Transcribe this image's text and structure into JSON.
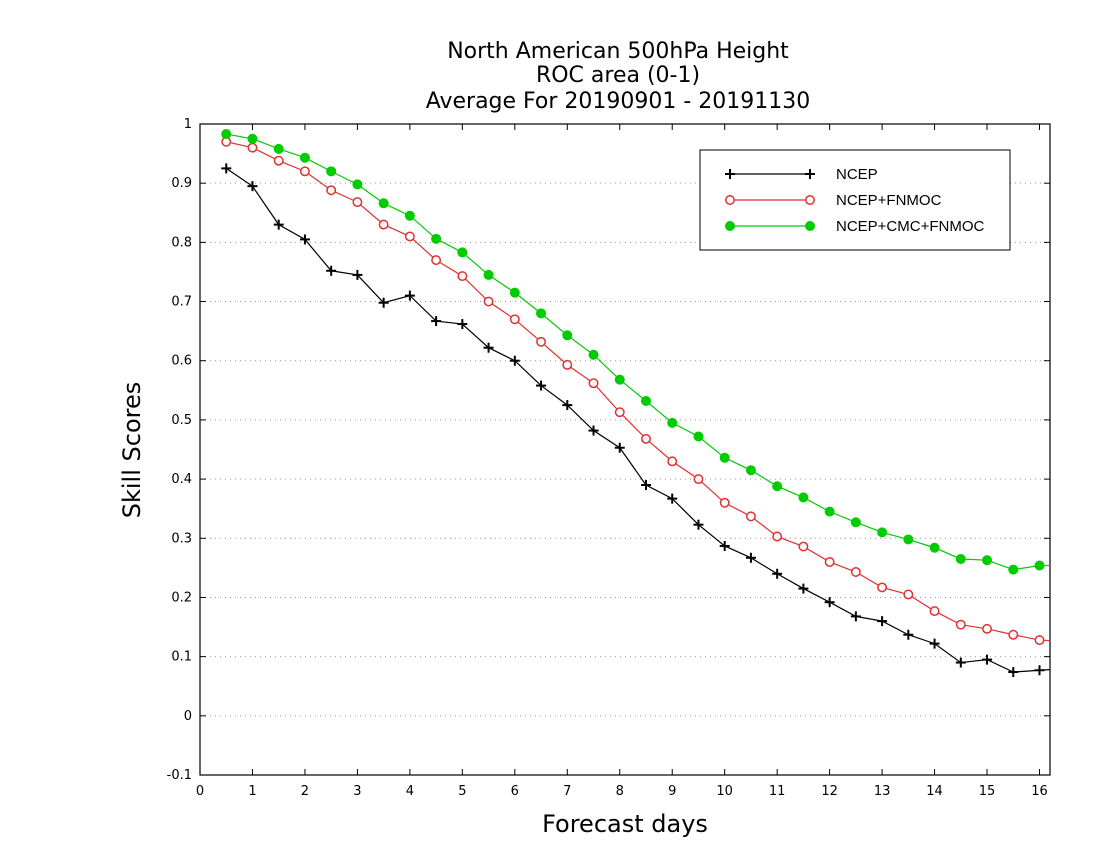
{
  "chart_data": {
    "type": "line",
    "title": [
      "North American 500hPa Height",
      "ROC area (0-1)",
      "Average For 20190901 - 20191130"
    ],
    "xlabel": "Forecast days",
    "ylabel": "Skill Scores",
    "xlim": [
      0,
      16.2
    ],
    "ylim": [
      -0.1,
      1
    ],
    "xticks": [
      0,
      1,
      2,
      3,
      4,
      5,
      6,
      7,
      8,
      9,
      10,
      11,
      12,
      13,
      14,
      15,
      16
    ],
    "xtick_labels": [
      "0",
      "1",
      "2",
      "3",
      "4",
      "5",
      "6",
      "7",
      "8",
      "9",
      "10",
      "11",
      "12",
      "13",
      "14",
      "15",
      "16"
    ],
    "yticks": [
      -0.1,
      0,
      0.1,
      0.2,
      0.3,
      0.4,
      0.5,
      0.6,
      0.7,
      0.8,
      0.9,
      1
    ],
    "ytick_labels": [
      "-0.1",
      "0",
      "0.1",
      "0.2",
      "0.3",
      "0.4",
      "0.5",
      "0.6",
      "0.7",
      "0.8",
      "0.9",
      "1"
    ],
    "grid": "horizontal dotted",
    "legend_position": "top-right",
    "x": [
      0.5,
      1,
      1.5,
      2,
      2.5,
      3,
      3.5,
      4,
      4.5,
      5,
      5.5,
      6,
      6.5,
      7,
      7.5,
      8,
      8.5,
      9,
      9.5,
      10,
      10.5,
      11,
      11.5,
      12,
      12.5,
      13,
      13.5,
      14,
      14.5,
      15,
      15.5,
      16,
      16.2
    ],
    "series": [
      {
        "name": "NCEP",
        "color": "#000000",
        "marker": "plus",
        "values": [
          0.925,
          0.895,
          0.83,
          0.805,
          0.752,
          0.745,
          0.698,
          0.71,
          0.667,
          0.662,
          0.622,
          0.6,
          0.558,
          0.525,
          0.482,
          0.453,
          0.39,
          0.367,
          0.323,
          0.287,
          0.267,
          0.24,
          0.215,
          0.192,
          0.168,
          0.16,
          0.137,
          0.122,
          0.09,
          0.095,
          0.074,
          0.077,
          0.078
        ]
      },
      {
        "name": "NCEP+FNMOC",
        "color": "#e03030",
        "marker": "open-circle",
        "values": [
          0.97,
          0.96,
          0.938,
          0.92,
          0.888,
          0.868,
          0.83,
          0.81,
          0.77,
          0.743,
          0.7,
          0.67,
          0.632,
          0.593,
          0.562,
          0.513,
          0.468,
          0.43,
          0.4,
          0.36,
          0.337,
          0.303,
          0.286,
          0.26,
          0.243,
          0.217,
          0.205,
          0.177,
          0.154,
          0.147,
          0.137,
          0.128,
          0.127
        ]
      },
      {
        "name": "NCEP+CMC+FNMOC",
        "color": "#00cc00",
        "marker": "filled-circle",
        "values": [
          0.983,
          0.975,
          0.958,
          0.943,
          0.92,
          0.898,
          0.866,
          0.845,
          0.806,
          0.783,
          0.745,
          0.715,
          0.68,
          0.643,
          0.61,
          0.568,
          0.532,
          0.495,
          0.472,
          0.436,
          0.415,
          0.388,
          0.369,
          0.345,
          0.327,
          0.31,
          0.298,
          0.284,
          0.265,
          0.263,
          0.247,
          0.254,
          0.254
        ]
      }
    ]
  }
}
